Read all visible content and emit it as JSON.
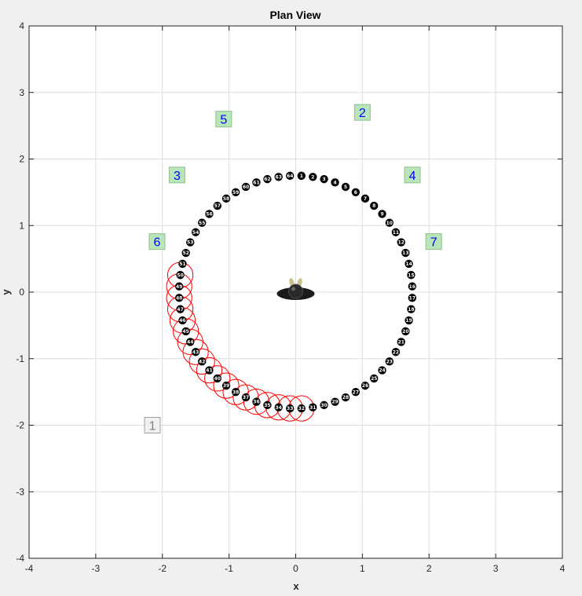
{
  "chart_data": {
    "type": "scatter",
    "title": "Plan View",
    "xlabel": "x",
    "ylabel": "y",
    "xlim": [
      -4,
      4
    ],
    "ylim": [
      -4,
      4
    ],
    "xticks": [
      -4,
      -3,
      -2,
      -1,
      0,
      1,
      2,
      3,
      4
    ],
    "yticks": [
      -4,
      -3,
      -2,
      -1,
      0,
      1,
      2,
      3,
      4
    ],
    "grid": true,
    "colors": {
      "waypoint": "#000000",
      "visited_circle": "#ff0000",
      "landmark_fill": "#b9e6b9",
      "landmark_text": "#0000ff",
      "landmark_inactive_fill": "#f0f0f0",
      "landmark_inactive_text": "#808080"
    },
    "waypoints": {
      "count": 64,
      "center": [
        0,
        0
      ],
      "radius": 1.75,
      "start_angle_deg": 90,
      "direction": "clockwise",
      "labels_from": 1
    },
    "visited_waypoints": [
      32,
      33,
      34,
      35,
      36,
      37,
      38,
      39,
      40,
      41,
      42,
      43,
      44,
      45,
      46,
      47,
      48,
      49,
      50
    ],
    "landmarks": [
      {
        "label": "1",
        "x": -2.15,
        "y": -2.0,
        "active": false
      },
      {
        "label": "2",
        "x": 1.0,
        "y": 2.7,
        "active": true
      },
      {
        "label": "3",
        "x": -1.78,
        "y": 1.76,
        "active": true
      },
      {
        "label": "4",
        "x": 1.75,
        "y": 1.76,
        "active": true
      },
      {
        "label": "5",
        "x": -1.08,
        "y": 2.6,
        "active": true
      },
      {
        "label": "6",
        "x": -2.08,
        "y": 0.76,
        "active": true
      },
      {
        "label": "7",
        "x": 2.07,
        "y": 0.76,
        "active": true
      }
    ],
    "robot": {
      "x": 0,
      "y": 0
    }
  }
}
